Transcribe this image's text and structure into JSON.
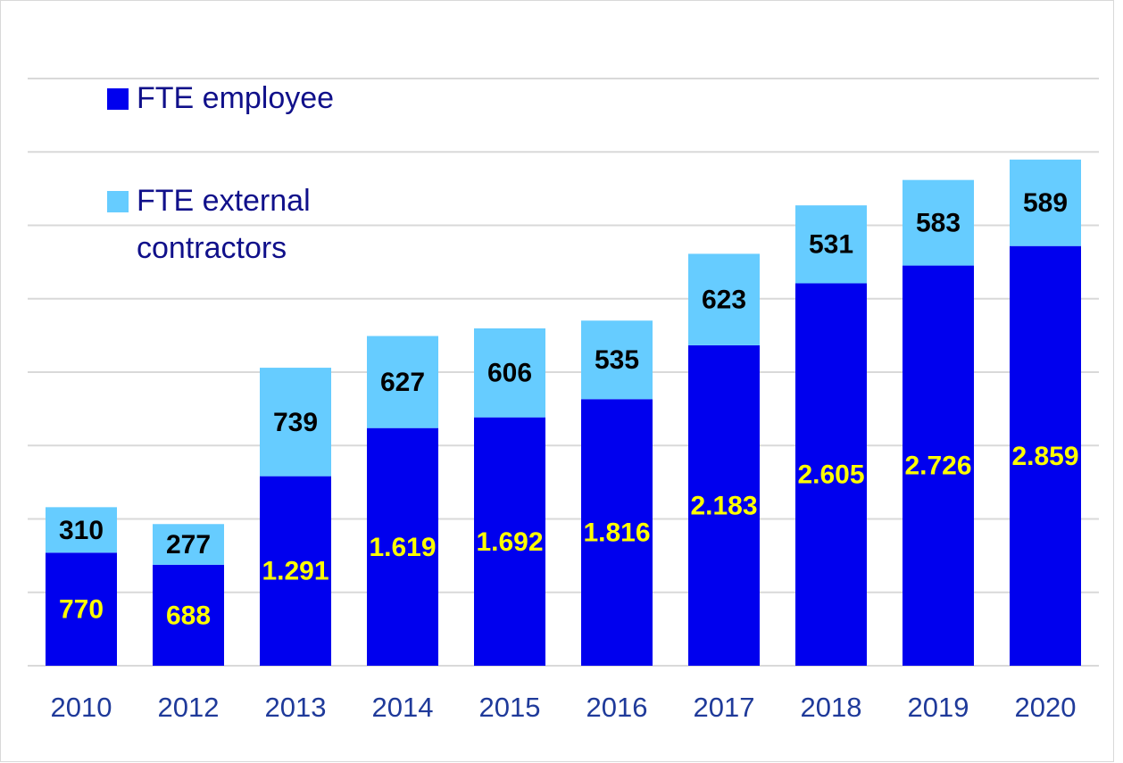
{
  "chart_data": {
    "type": "stacked_bar",
    "categories": [
      "2010",
      "2012",
      "2013",
      "2014",
      "2015",
      "2016",
      "2017",
      "2018",
      "2019",
      "2020"
    ],
    "series": [
      {
        "name": "FTE employee",
        "color": "#0000ee",
        "values": [
          770,
          688,
          1291,
          1619,
          1692,
          1816,
          2183,
          2605,
          2726,
          2859
        ],
        "value_labels": [
          "770",
          "688",
          "1.291",
          "1.619",
          "1.692",
          "1.816",
          "2.183",
          "2.605",
          "2.726",
          "2.859"
        ]
      },
      {
        "name": "FTE external contractors",
        "color": "#66ccff",
        "values": [
          310,
          277,
          739,
          627,
          606,
          535,
          623,
          531,
          583,
          589
        ]
      }
    ],
    "ylim": [
      0,
      4000
    ],
    "yticks": [
      0,
      500,
      1000,
      1500,
      2000,
      2500,
      3000,
      3500,
      4000
    ],
    "grid": true,
    "legend": "top-left"
  }
}
